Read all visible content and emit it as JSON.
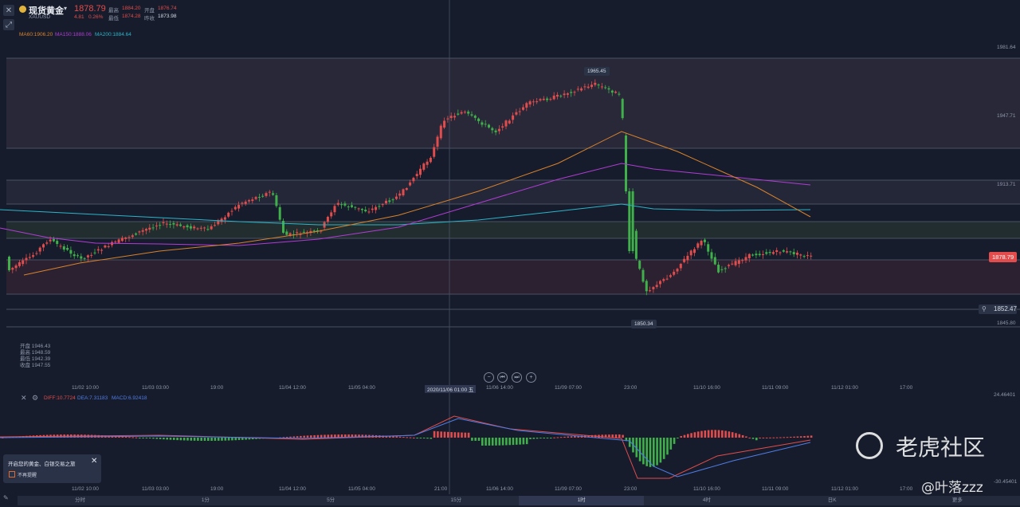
{
  "header": {
    "symbol_name": "现货黄金",
    "symbol_code": "XAUUSD",
    "price": "1878.79",
    "change": "4.81",
    "change_pct": "0.26%",
    "high_label": "最高",
    "high_value": "1884.20",
    "open_label": "开盘",
    "open_value": "1876.74",
    "low_label": "最低",
    "low_value": "1874.28",
    "prev_label": "昨收",
    "prev_value": "1873.98"
  },
  "ma_legend": {
    "ma60": "MA60:1906.20",
    "ma150": "MA150:1888.06",
    "ma200": "MA200:1884.64"
  },
  "price_axis": {
    "top": "1981.64",
    "mid1": "1947.71",
    "mid2": "1913.71",
    "bottom": "1845.80"
  },
  "current_price_tag": "1878.79",
  "alert_price": "1852.47",
  "high_marker": "1965.45",
  "low_marker": "1850.34",
  "ohlc_panel": {
    "open": "开盘 1946.43",
    "high": "最高 1948.59",
    "low": "最低 1942.39",
    "close": "收盘 1947.55"
  },
  "time_axis": [
    "11/02 10:00",
    "11/03 03:00",
    "19:00",
    "11/04 12:00",
    "11/05 04:00",
    "2020/11/06 01:00 五",
    "11/06 14:00",
    "11/09 07:00",
    "23:00",
    "11/10 16:00",
    "11/11 09:00",
    "11/12 01:00",
    "17:00"
  ],
  "time_axis_bottom": [
    "11/02 10:00",
    "11/03 03:00",
    "19:00",
    "11/04 12:00",
    "11/05 04:00",
    "21:00",
    "11/06 14:00",
    "11/09 07:00",
    "23:00",
    "11/10 16:00",
    "11/11 09:00",
    "11/12 01:00",
    "17:00"
  ],
  "macd_legend": {
    "diff": "DIFF:10.7724",
    "dea": "DEA:7.31183",
    "macd": "MACD:6.92418"
  },
  "macd_axis": {
    "top": "24.46401",
    "bottom": "-30.45401"
  },
  "tabs": [
    "分时",
    "1分",
    "5分",
    "15分",
    "1时",
    "4时",
    "日K",
    "更多"
  ],
  "active_tab": 4,
  "toast": {
    "title": "开启您的黄金、白银交易之旅",
    "checkbox_label": "不再提醒"
  },
  "watermark": {
    "community": "老虎社区",
    "author": "@叶落zzz"
  },
  "colors": {
    "up": "#e24c4c",
    "down": "#3fb04a",
    "ma60": "#d9822b",
    "ma150": "#b23cd6",
    "ma200": "#2bb5c9",
    "bg": "#161c2b"
  }
}
